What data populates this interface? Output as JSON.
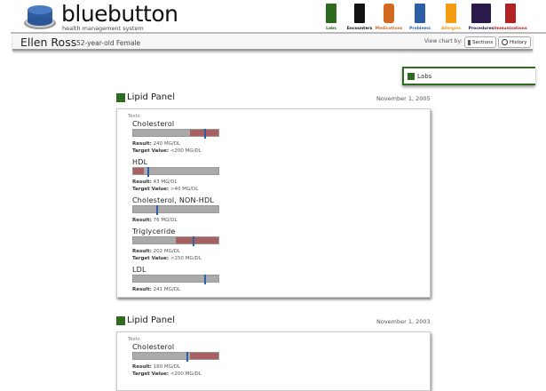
{
  "header": {
    "brand": "bluebutton",
    "tagline": "health management system",
    "nav": [
      {
        "label": "Labs",
        "color": "#2e6b1f",
        "icon": "flask-icon"
      },
      {
        "label": "Encounters",
        "color": "#111111",
        "icon": "numbered-list-icon"
      },
      {
        "label": "Medications",
        "color": "#d2691e",
        "icon": "pill-bottle-icon"
      },
      {
        "label": "Problems",
        "color": "#2d5fa8",
        "icon": "person-icon"
      },
      {
        "label": "Allergies",
        "color": "#f39c12",
        "icon": "allergy-icon"
      },
      {
        "label": "Procedures",
        "color": "#2a1a4a",
        "icon": "xray-hand-icon"
      },
      {
        "label": "Immunizations",
        "color": "#b22222",
        "icon": "syringe-icon"
      }
    ]
  },
  "patient": {
    "name": "Ellen Ross",
    "description": "52-year-old Female"
  },
  "view": {
    "label": "View chart by:",
    "sections": "Sections",
    "history": "History"
  },
  "section_label": "Labs",
  "panels": [
    {
      "title": "Lipid Panel",
      "date": "November 1, 2005",
      "tests_label": "Tests",
      "tests": [
        {
          "name": "Cholesterol",
          "result_label": "Result:",
          "result": "240 MG/DL",
          "target_label": "Target Value:",
          "target": "<200 MG/DL",
          "out_of_range": {
            "start": 0.67,
            "end": 1
          },
          "marker": 0.83
        },
        {
          "name": "HDL",
          "result_label": "Result:",
          "result": "43 MG/DL",
          "target_label": "Target Value:",
          "target": ">40 MG/DL",
          "out_of_range": {
            "start": 0,
            "end": 0.13
          },
          "marker": 0.17
        },
        {
          "name": "Cholesterol, NON-HDL",
          "result_label": "Result:",
          "result": "76 MG/DL",
          "marker": 0.27
        },
        {
          "name": "Triglyceride",
          "result_label": "Result:",
          "result": "202 MG/DL",
          "target_label": "Target Value:",
          "target": "<150 MG/DL",
          "out_of_range": {
            "start": 0.5,
            "end": 1
          },
          "marker": 0.7
        },
        {
          "name": "LDL",
          "result_label": "Result:",
          "result": "241 MG/DL",
          "marker": 0.83
        }
      ]
    },
    {
      "title": "Lipid Panel",
      "date": "November 1, 2003",
      "tests_label": "Tests",
      "tests": [
        {
          "name": "Cholesterol",
          "result_label": "Result:",
          "result": "180 MG/DL",
          "target_label": "Target Value:",
          "target": "<200 MG/DL",
          "out_of_range": {
            "start": 0.67,
            "end": 1
          },
          "marker": 0.62
        }
      ]
    }
  ]
}
